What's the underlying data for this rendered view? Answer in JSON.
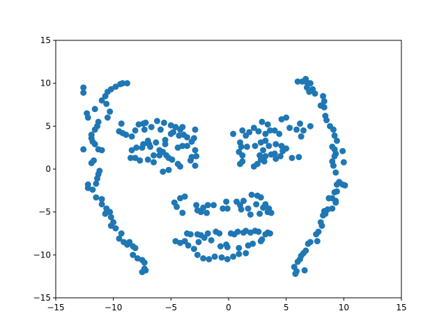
{
  "chart_data": {
    "type": "scatter",
    "title": "",
    "xlabel": "",
    "ylabel": "",
    "xlim": [
      -15,
      15
    ],
    "ylim": [
      -15,
      15
    ],
    "xticks": [
      -15,
      -10,
      -5,
      0,
      5,
      10,
      15
    ],
    "yticks": [
      -15,
      -10,
      -5,
      0,
      5,
      10,
      15
    ],
    "grid": false,
    "marker_color": "#1f77b4",
    "series": [
      {
        "points": [
          [
            -12.6,
            9.5
          ],
          [
            -12.6,
            8.9
          ],
          [
            -12.3,
            6.5
          ],
          [
            -12.2,
            6.0
          ],
          [
            -11.9,
            4.0
          ],
          [
            -11.9,
            3.6
          ],
          [
            -11.8,
            3.2
          ],
          [
            -11.6,
            4.6
          ],
          [
            -11.4,
            5.0
          ],
          [
            -11.3,
            5.5
          ],
          [
            -11.6,
            7.0
          ],
          [
            -11.6,
            2.9
          ],
          [
            -11.3,
            2.3
          ],
          [
            -12.6,
            2.3
          ],
          [
            -11.9,
            0.7
          ],
          [
            -11.7,
            1.0
          ],
          [
            -11.2,
            -0.2
          ],
          [
            -11.3,
            -0.6
          ],
          [
            -11.4,
            -1.1
          ],
          [
            -11.5,
            -1.7
          ],
          [
            -12.2,
            -1.8
          ],
          [
            -12.2,
            -2.2
          ],
          [
            -11.8,
            -2.4
          ],
          [
            -11.5,
            -3.3
          ],
          [
            -11.0,
            -3.5
          ],
          [
            -11.0,
            -4.1
          ],
          [
            -10.6,
            -4.6
          ],
          [
            -10.3,
            -5.0
          ],
          [
            -10.7,
            -5.2
          ],
          [
            -10.2,
            -5.6
          ],
          [
            -10.0,
            -6.2
          ],
          [
            -10.2,
            -6.6
          ],
          [
            -9.8,
            -6.9
          ],
          [
            -9.3,
            -7.5
          ],
          [
            -9.5,
            -8.1
          ],
          [
            -9.1,
            -8.5
          ],
          [
            -8.8,
            -8.8
          ],
          [
            -8.6,
            -8.5
          ],
          [
            -8.3,
            -9.0
          ],
          [
            -8.1,
            -9.2
          ],
          [
            -8.3,
            -10.0
          ],
          [
            -7.9,
            -10.4
          ],
          [
            -7.5,
            -10.6
          ],
          [
            -7.3,
            -10.9
          ],
          [
            -7.3,
            -11.6
          ],
          [
            -7.2,
            -11.8
          ],
          [
            -7.5,
            -12.0
          ],
          [
            -11.0,
            8.0
          ],
          [
            -10.7,
            8.5
          ],
          [
            -10.2,
            9.3
          ],
          [
            -10.5,
            9.0
          ],
          [
            -9.8,
            9.6
          ],
          [
            -9.4,
            9.9
          ],
          [
            -9.2,
            10.0
          ],
          [
            -8.8,
            10.0
          ],
          [
            -10.3,
            6.7
          ],
          [
            -10.5,
            6.0
          ],
          [
            -10.6,
            7.6
          ],
          [
            -11.0,
            2.2
          ],
          [
            -9.3,
            5.3
          ],
          [
            -9.2,
            4.2
          ],
          [
            -9.5,
            4.4
          ],
          [
            -8.9,
            4.0
          ],
          [
            -8.4,
            3.8
          ],
          [
            -8.1,
            4.5
          ],
          [
            -7.8,
            5.2
          ],
          [
            -7.4,
            5.3
          ],
          [
            -7.2,
            5.4
          ],
          [
            -7.3,
            4.6
          ],
          [
            -6.7,
            4.9
          ],
          [
            -6.2,
            5.6
          ],
          [
            -5.9,
            4.6
          ],
          [
            -5.6,
            5.4
          ],
          [
            -5.0,
            5.1
          ],
          [
            -4.8,
            4.3
          ],
          [
            -4.6,
            4.9
          ],
          [
            -4.2,
            4.6
          ],
          [
            -4.0,
            4.9
          ],
          [
            -3.9,
            4.0
          ],
          [
            -3.6,
            3.7
          ],
          [
            -2.9,
            4.6
          ],
          [
            -3.0,
            3.6
          ],
          [
            -3.2,
            3.2
          ],
          [
            -5.5,
            3.4
          ],
          [
            -5.0,
            4.1
          ],
          [
            -4.3,
            3.9
          ],
          [
            -6.3,
            3.1
          ],
          [
            -6.8,
            2.6
          ],
          [
            -7.0,
            3.3
          ],
          [
            -7.5,
            2.5
          ],
          [
            -8.0,
            2.5
          ],
          [
            -8.4,
            2.2
          ],
          [
            -8.5,
            1.3
          ],
          [
            -8.1,
            1.3
          ],
          [
            -7.7,
            1.0
          ],
          [
            -7.4,
            2.9
          ],
          [
            -6.9,
            2.9
          ],
          [
            -6.5,
            1.6
          ],
          [
            -6.0,
            1.6
          ],
          [
            -5.7,
            2.0
          ],
          [
            -5.4,
            1.6
          ],
          [
            -5.2,
            1.3
          ],
          [
            -4.9,
            1.1
          ],
          [
            -4.4,
            0.6
          ],
          [
            -4.0,
            2.7
          ],
          [
            -3.6,
            2.7
          ],
          [
            -3.3,
            1.0
          ],
          [
            -3.2,
            1.4
          ],
          [
            -2.9,
            2.2
          ],
          [
            -2.8,
            1.5
          ],
          [
            -2.9,
            0.4
          ],
          [
            -4.2,
            0.3
          ],
          [
            -5.2,
            -0.1
          ],
          [
            -5.7,
            -0.3
          ],
          [
            -6.5,
            0.8
          ],
          [
            -7.0,
            1.1
          ],
          [
            -6.0,
            2.2
          ],
          [
            -5.5,
            2.9
          ],
          [
            -4.4,
            2.5
          ],
          [
            0.4,
            4.1
          ],
          [
            1.2,
            4.5
          ],
          [
            1.5,
            3.9
          ],
          [
            1.8,
            4.3
          ],
          [
            2.2,
            4.8
          ],
          [
            2.6,
            4.4
          ],
          [
            2.9,
            5.5
          ],
          [
            3.2,
            4.1
          ],
          [
            3.4,
            5.2
          ],
          [
            3.6,
            4.5
          ],
          [
            4.0,
            4.5
          ],
          [
            4.4,
            4.1
          ],
          [
            4.6,
            5.8
          ],
          [
            5.0,
            6.0
          ],
          [
            5.3,
            4.8
          ],
          [
            5.9,
            4.6
          ],
          [
            6.5,
            4.5
          ],
          [
            6.2,
            5.3
          ],
          [
            7.1,
            5.0
          ],
          [
            6.3,
            3.8
          ],
          [
            1.0,
            3.1
          ],
          [
            1.1,
            2.6
          ],
          [
            1.6,
            2.6
          ],
          [
            2.3,
            2.7
          ],
          [
            2.8,
            3.1
          ],
          [
            3.2,
            3.3
          ],
          [
            3.5,
            2.7
          ],
          [
            3.0,
            2.2
          ],
          [
            2.7,
            1.6
          ],
          [
            2.8,
            1.1
          ],
          [
            3.2,
            1.5
          ],
          [
            3.7,
            1.7
          ],
          [
            4.1,
            2.9
          ],
          [
            4.6,
            2.7
          ],
          [
            5.0,
            2.4
          ],
          [
            4.7,
            2.1
          ],
          [
            4.5,
            1.5
          ],
          [
            4.1,
            1.2
          ],
          [
            5.5,
            1.3
          ],
          [
            6.1,
            1.4
          ],
          [
            0.9,
            2.0
          ],
          [
            1.2,
            1.6
          ],
          [
            1.0,
            0.6
          ],
          [
            1.2,
            0.9
          ],
          [
            2.2,
            0.3
          ],
          [
            2.5,
            0.6
          ],
          [
            3.1,
            0.9
          ],
          [
            4.0,
            1.8
          ],
          [
            -4.7,
            -3.9
          ],
          [
            -4.5,
            -4.4
          ],
          [
            -4.2,
            -3.4
          ],
          [
            -3.8,
            -3.2
          ],
          [
            -2.7,
            -4.8
          ],
          [
            -2.8,
            -4.2
          ],
          [
            -2.4,
            -5.0
          ],
          [
            -2.2,
            -4.5
          ],
          [
            -1.8,
            -4.2
          ],
          [
            -1.9,
            -5.1
          ],
          [
            -1.3,
            -4.2
          ],
          [
            -0.5,
            -4.6
          ],
          [
            -0.2,
            -3.8
          ],
          [
            -0.1,
            -4.6
          ],
          [
            0.7,
            -3.8
          ],
          [
            1.0,
            -4.2
          ],
          [
            1.3,
            -3.7
          ],
          [
            1.1,
            -4.7
          ],
          [
            1.7,
            -4.6
          ],
          [
            2.0,
            -3.0
          ],
          [
            2.5,
            -3.1
          ],
          [
            2.4,
            -4.1
          ],
          [
            2.8,
            -3.3
          ],
          [
            3.0,
            -4.5
          ],
          [
            3.2,
            -4.1
          ],
          [
            3.4,
            -5.0
          ],
          [
            3.5,
            -4.6
          ],
          [
            3.7,
            -5.1
          ],
          [
            2.7,
            -5.2
          ],
          [
            1.9,
            -5.3
          ],
          [
            -4.0,
            -5.1
          ],
          [
            -4.2,
            -8.6
          ],
          [
            -3.8,
            -8.4
          ],
          [
            -3.5,
            -8.9
          ],
          [
            -3.6,
            -7.5
          ],
          [
            -3.3,
            -7.6
          ],
          [
            -2.7,
            -7.6
          ],
          [
            -2.4,
            -7.7
          ],
          [
            -2.1,
            -8.0
          ],
          [
            -1.8,
            -7.5
          ],
          [
            -1.1,
            -7.3
          ],
          [
            -0.8,
            -7.5
          ],
          [
            -0.7,
            -9.0
          ],
          [
            -0.2,
            -8.8
          ],
          [
            -0.1,
            -9.1
          ],
          [
            0.2,
            -7.5
          ],
          [
            0.5,
            -7.6
          ],
          [
            0.8,
            -7.3
          ],
          [
            1.3,
            -7.4
          ],
          [
            1.5,
            -7.2
          ],
          [
            1.9,
            -7.4
          ],
          [
            2.3,
            -7.2
          ],
          [
            2.6,
            -7.3
          ],
          [
            3.2,
            -7.6
          ],
          [
            3.4,
            -7.4
          ],
          [
            3.6,
            -7.5
          ],
          [
            2.8,
            -8.4
          ],
          [
            2.9,
            -8.2
          ],
          [
            1.7,
            -8.9
          ],
          [
            2.1,
            -8.7
          ],
          [
            0.9,
            -9.2
          ],
          [
            -1.5,
            -8.3
          ],
          [
            -2.6,
            -8.5
          ],
          [
            -3.0,
            -9.3
          ],
          [
            -2.7,
            -10.0
          ],
          [
            -2.2,
            -10.4
          ],
          [
            -1.7,
            -10.5
          ],
          [
            -1.2,
            -10.2
          ],
          [
            -0.6,
            -10.3
          ],
          [
            -0.1,
            -10.5
          ],
          [
            0.4,
            -10.2
          ],
          [
            0.9,
            -9.9
          ],
          [
            1.5,
            -9.8
          ],
          [
            -4.6,
            -8.4
          ],
          [
            6.0,
            10.2
          ],
          [
            6.4,
            10.2
          ],
          [
            6.7,
            10.5
          ],
          [
            6.8,
            10.1
          ],
          [
            7.1,
            10.0
          ],
          [
            7.3,
            9.3
          ],
          [
            6.8,
            9.5
          ],
          [
            7.0,
            9.0
          ],
          [
            7.5,
            8.8
          ],
          [
            8.2,
            8.5
          ],
          [
            8.3,
            7.9
          ],
          [
            8.0,
            7.4
          ],
          [
            8.3,
            7.2
          ],
          [
            8.4,
            6.2
          ],
          [
            8.5,
            5.7
          ],
          [
            8.8,
            5.0
          ],
          [
            9.1,
            4.6
          ],
          [
            9.2,
            3.9
          ],
          [
            9.4,
            3.3
          ],
          [
            9.0,
            2.6
          ],
          [
            9.2,
            2.3
          ],
          [
            9.3,
            1.8
          ],
          [
            9.2,
            1.5
          ],
          [
            9.9,
            2.1
          ],
          [
            9.0,
            0.9
          ],
          [
            9.1,
            0.4
          ],
          [
            10.0,
            0.8
          ],
          [
            9.3,
            -0.4
          ],
          [
            9.6,
            -1.5
          ],
          [
            9.4,
            -1.8
          ],
          [
            9.9,
            -1.8
          ],
          [
            10.1,
            -1.9
          ],
          [
            9.4,
            -2.6
          ],
          [
            9.2,
            -2.7
          ],
          [
            9.0,
            -3.4
          ],
          [
            8.7,
            -3.4
          ],
          [
            9.3,
            -3.7
          ],
          [
            9.3,
            -3.9
          ],
          [
            9.0,
            -4.6
          ],
          [
            8.6,
            -4.7
          ],
          [
            8.3,
            -4.9
          ],
          [
            8.4,
            -5.2
          ],
          [
            8.2,
            -5.4
          ],
          [
            8.0,
            -6.2
          ],
          [
            8.1,
            -6.6
          ],
          [
            7.8,
            -7.3
          ],
          [
            7.6,
            -7.6
          ],
          [
            7.7,
            -8.4
          ],
          [
            7.1,
            -8.5
          ],
          [
            6.9,
            -8.7
          ],
          [
            6.7,
            -9.5
          ],
          [
            6.5,
            -9.8
          ],
          [
            6.3,
            -10.1
          ],
          [
            6.2,
            -10.5
          ],
          [
            6.0,
            -10.8
          ],
          [
            5.7,
            -11.4
          ],
          [
            5.9,
            -11.9
          ],
          [
            5.8,
            -12.2
          ],
          [
            6.6,
            -11.8
          ]
        ]
      }
    ]
  }
}
